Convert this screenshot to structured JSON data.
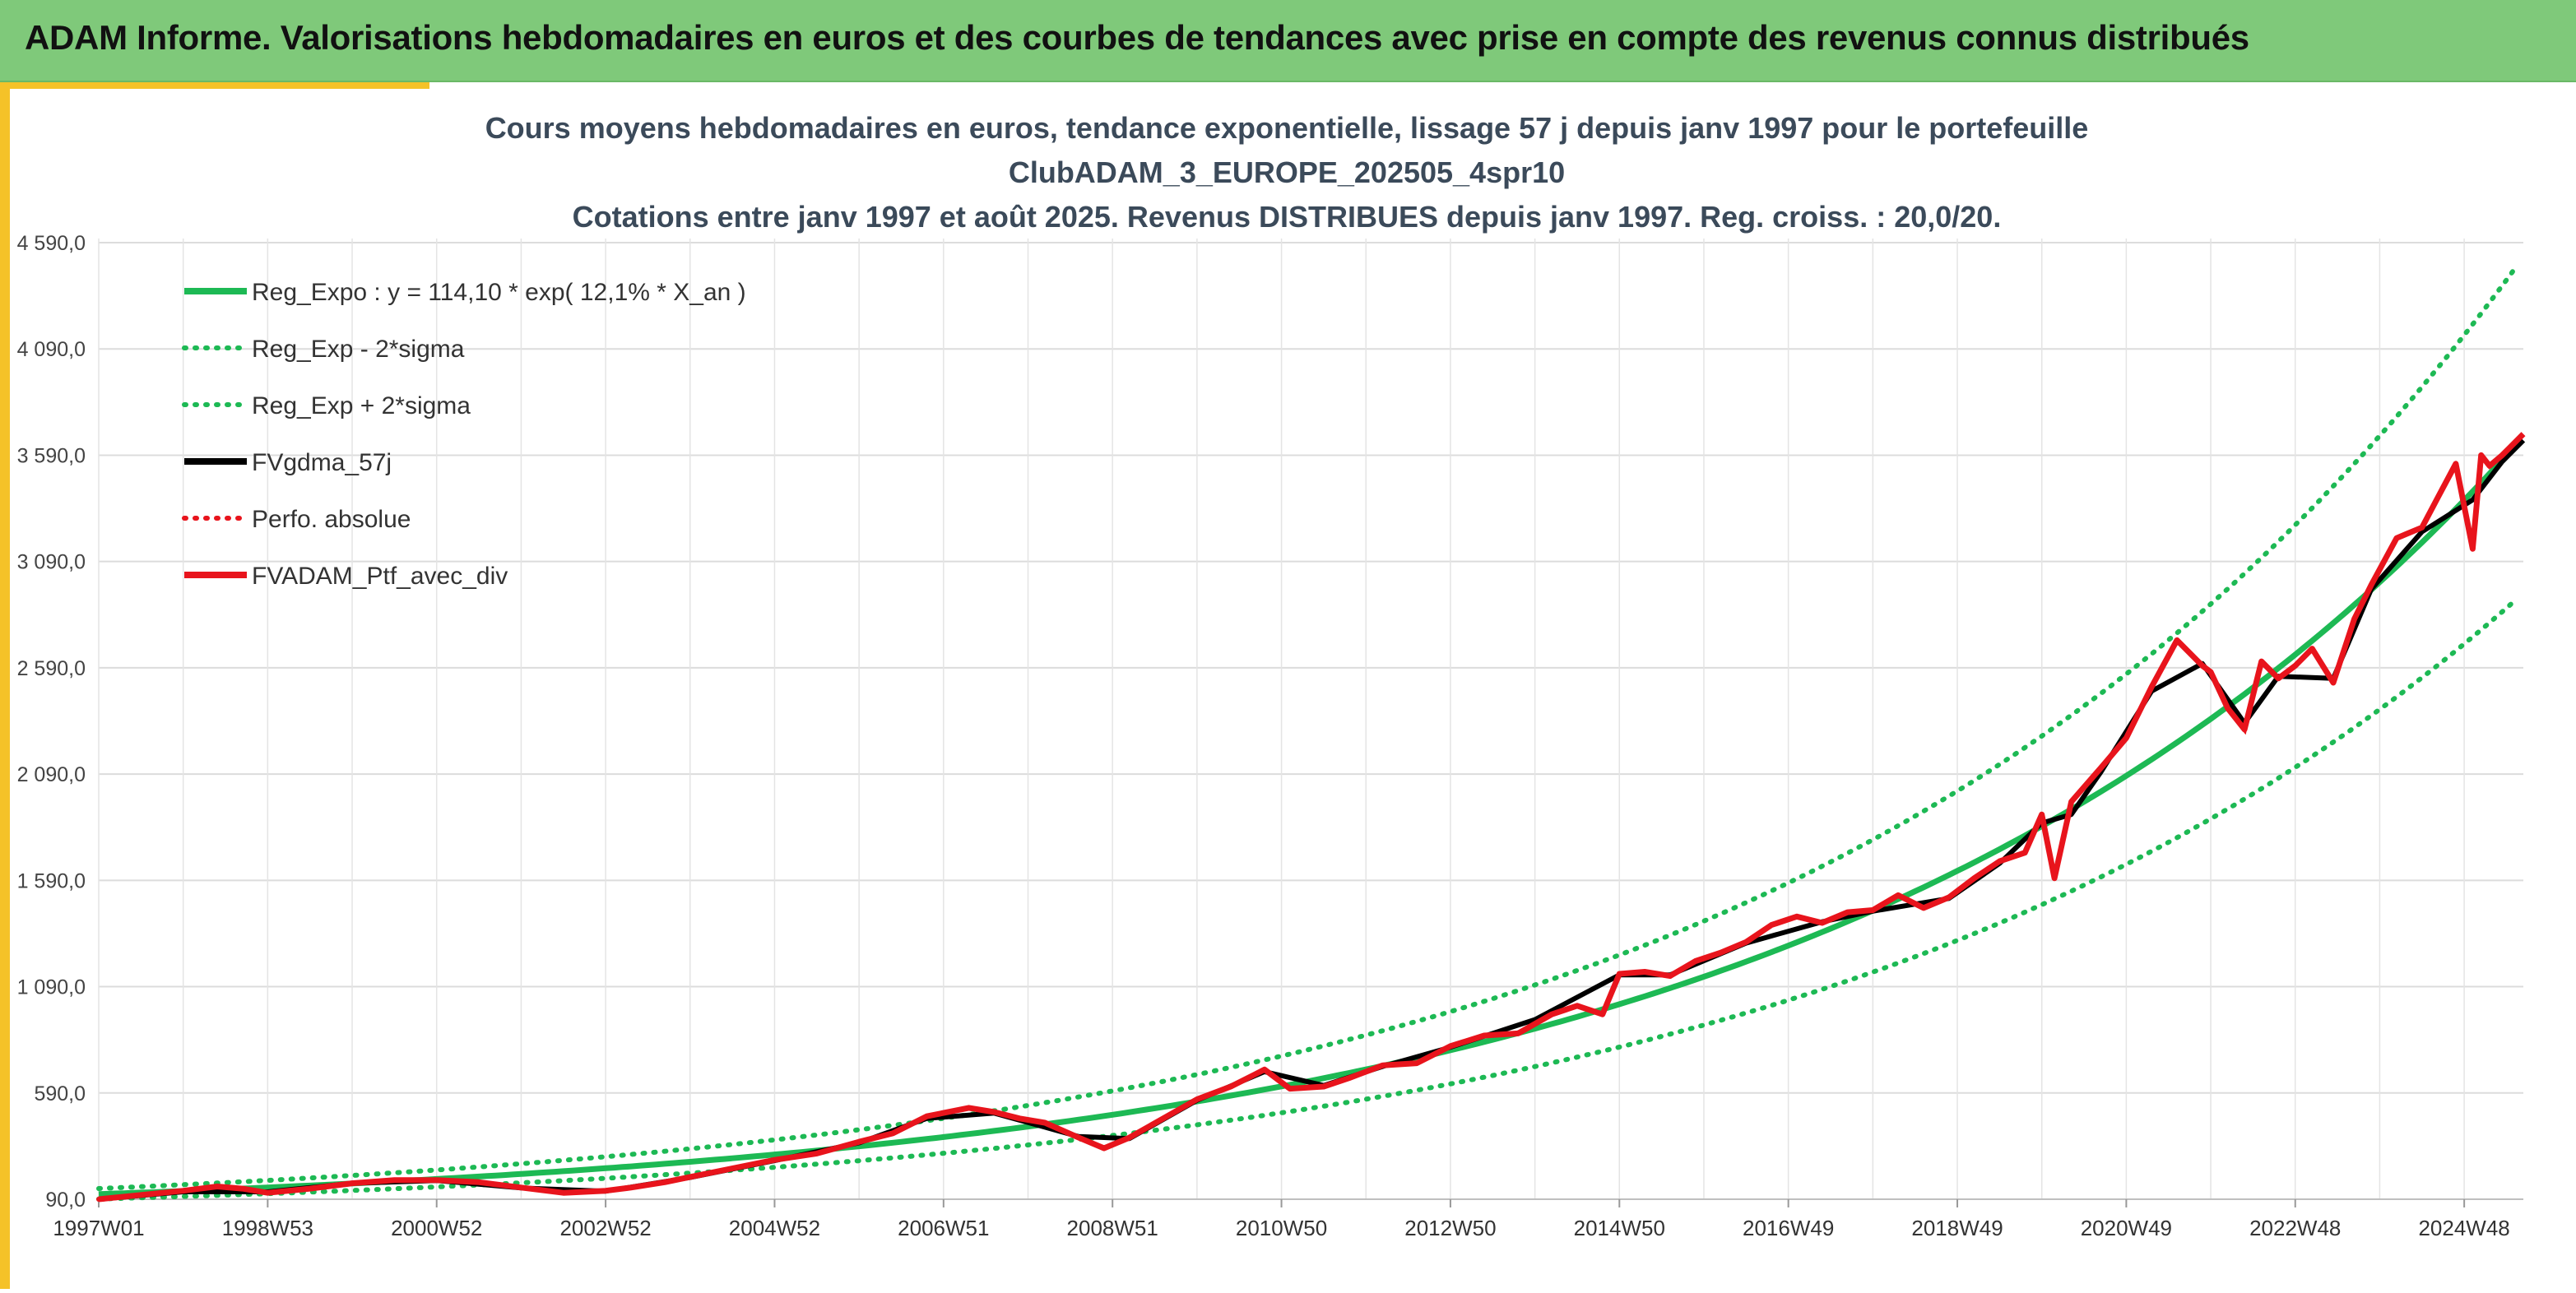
{
  "banner": {
    "title": "ADAM Informe. Valorisations hebdomadaires en euros et des courbes de tendances avec prise en compte des revenus connus distribués"
  },
  "colors": {
    "banner_bg": "#7fc97a",
    "accent": "#f5c228",
    "trend_green": "#1db954",
    "smoothed_black": "#000000",
    "portfolio_red": "#e8141c",
    "title_text": "#3b4a5a"
  },
  "chart_data": {
    "type": "line",
    "title_lines": [
      "Cours moyens hebdomadaires en euros, tendance exponentielle, lissage 57 j depuis janv 1997 pour le portefeuille",
      "ClubADAM_3_EUROPE_202505_4spr10",
      "Cotations entre janv 1997 et août 2025. Revenus DISTRIBUES depuis janv 1997. Reg. croiss. : 20,0/20."
    ],
    "ylim": [
      90,
      4590
    ],
    "y_ticks": [
      "90,0",
      "590,0",
      "1 090,0",
      "1 590,0",
      "2 090,0",
      "2 590,0",
      "3 090,0",
      "3 590,0",
      "4 090,0",
      "4 590,0"
    ],
    "y_tick_values": [
      90,
      590,
      1090,
      1590,
      2090,
      2590,
      3090,
      3590,
      4090,
      4590
    ],
    "xlim": [
      1997.0,
      2025.7
    ],
    "x_ticks": [
      "1997W01",
      "1998W53",
      "2000W52",
      "2002W52",
      "2004W52",
      "2006W51",
      "2008W51",
      "2010W50",
      "2012W50",
      "2014W50",
      "2016W49",
      "2018W49",
      "2020W49",
      "2022W48",
      "2024W48"
    ],
    "x_tick_values": [
      1997.0,
      1999.0,
      2001.0,
      2003.0,
      2005.0,
      2007.0,
      2009.0,
      2011.0,
      2013.0,
      2015.0,
      2017.0,
      2019.0,
      2021.0,
      2023.0,
      2025.0
    ],
    "grid": true,
    "legend_position": "top-left",
    "legend": [
      {
        "label": "Reg_Expo : y = 114,10 * exp( 12,1% *  X_an )",
        "color": "#1db954",
        "style": "solid"
      },
      {
        "label": "Reg_Exp - 2*sigma",
        "color": "#1db954",
        "style": "dotted"
      },
      {
        "label": "Reg_Exp + 2*sigma",
        "color": "#1db954",
        "style": "dotted"
      },
      {
        "label": "FVgdma_57j",
        "color": "#000000",
        "style": "solid"
      },
      {
        "label": "Perfo. absolue",
        "color": "#e8141c",
        "style": "dotted"
      },
      {
        "label": "FVADAM_Ptf_avec_div",
        "color": "#e8141c",
        "style": "solid"
      }
    ],
    "trend": {
      "a": 114.1,
      "rate": 0.121,
      "lower_factor": 0.8,
      "upper_factor": 1.23
    },
    "series": [
      {
        "name": "FVADAM_Ptf_avec_div",
        "x": [
          1997.0,
          1997.5,
          1998.0,
          1998.4,
          1998.7,
          1999.0,
          1999.5,
          2000.0,
          2000.5,
          2001.0,
          2001.5,
          2002.0,
          2002.5,
          2003.0,
          2003.3,
          2003.7,
          2004.0,
          2004.5,
          2005.0,
          2005.5,
          2006.0,
          2006.4,
          2006.8,
          2007.3,
          2007.6,
          2007.9,
          2008.2,
          2008.6,
          2008.9,
          2009.2,
          2009.6,
          2010.0,
          2010.4,
          2010.8,
          2011.1,
          2011.5,
          2011.8,
          2012.2,
          2012.6,
          2013.0,
          2013.4,
          2013.8,
          2014.2,
          2014.5,
          2014.8,
          2015.0,
          2015.3,
          2015.6,
          2015.9,
          2016.2,
          2016.5,
          2016.8,
          2017.1,
          2017.4,
          2017.7,
          2018.0,
          2018.3,
          2018.6,
          2018.9,
          2019.2,
          2019.5,
          2019.8,
          2020.0,
          2020.15,
          2020.35,
          2020.7,
          2021.0,
          2021.3,
          2021.6,
          2021.9,
          2022.0,
          2022.2,
          2022.4,
          2022.6,
          2022.8,
          2023.0,
          2023.2,
          2023.45,
          2023.7,
          2023.9,
          2024.2,
          2024.5,
          2024.7,
          2024.9,
          2025.1,
          2025.2,
          2025.3,
          2025.45,
          2025.7
        ],
        "y": [
          90,
          110,
          130,
          150,
          140,
          120,
          140,
          165,
          180,
          180,
          170,
          145,
          120,
          130,
          145,
          170,
          195,
          235,
          275,
          305,
          360,
          400,
          480,
          520,
          500,
          470,
          450,
          380,
          330,
          380,
          470,
          560,
          620,
          700,
          610,
          620,
          660,
          720,
          730,
          810,
          860,
          870,
          960,
          1000,
          960,
          1150,
          1160,
          1140,
          1210,
          1250,
          1300,
          1380,
          1420,
          1390,
          1440,
          1450,
          1520,
          1460,
          1510,
          1600,
          1680,
          1720,
          1900,
          1600,
          1960,
          2120,
          2260,
          2500,
          2720,
          2600,
          2570,
          2400,
          2300,
          2620,
          2540,
          2600,
          2680,
          2520,
          2820,
          2980,
          3200,
          3250,
          3400,
          3550,
          3150,
          3590,
          3540,
          3590,
          3690
        ]
      },
      {
        "name": "FVgdma_57j",
        "x": [
          1997.0,
          1998.0,
          1999.0,
          2000.0,
          2001.0,
          2002.0,
          2003.0,
          2004.0,
          2005.0,
          2006.0,
          2006.8,
          2007.6,
          2008.6,
          2009.2,
          2010.0,
          2010.8,
          2011.5,
          2012.2,
          2013.0,
          2014.0,
          2015.0,
          2015.6,
          2016.5,
          2017.4,
          2018.0,
          2018.9,
          2019.5,
          2020.0,
          2020.35,
          2020.7,
          2021.3,
          2021.9,
          2022.4,
          2022.8,
          2023.45,
          2023.9,
          2024.5,
          2025.1,
          2025.45,
          2025.7
        ],
        "y": [
          90,
          125,
          125,
          165,
          178,
          143,
          128,
          192,
          272,
          355,
          470,
          495,
          385,
          375,
          555,
          690,
          625,
          715,
          805,
          935,
          1145,
          1145,
          1295,
          1395,
          1445,
          1505,
          1670,
          1860,
          1900,
          2100,
          2480,
          2610,
          2330,
          2550,
          2540,
          2960,
          3230,
          3380,
          3560,
          3660
        ]
      }
    ]
  }
}
